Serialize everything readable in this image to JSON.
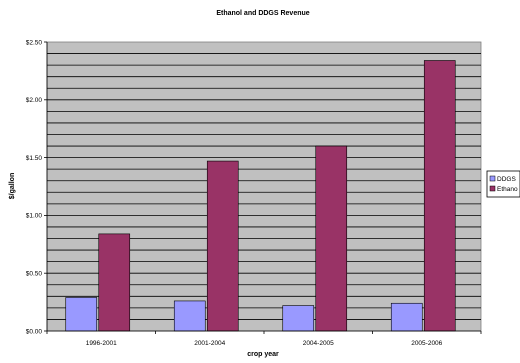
{
  "chart_data": {
    "type": "bar",
    "title": "Ethanol and DDGS Revenue",
    "xlabel": "crop year",
    "ylabel": "$/gallon",
    "categories": [
      "1996-2001",
      "2001-2004",
      "2004-2005",
      "2005-2006"
    ],
    "series": [
      {
        "name": "DDGS",
        "values": [
          0.29,
          0.26,
          0.22,
          0.24
        ],
        "color": "#9999ff"
      },
      {
        "name": "Ethano",
        "values": [
          0.84,
          1.47,
          1.6,
          2.34
        ],
        "color": "#993366"
      }
    ],
    "ylim": [
      0,
      2.5
    ],
    "y_ticks": [
      "$0.00",
      "$0.50",
      "$1.00",
      "$1.50",
      "$2.00",
      "$2.50"
    ],
    "grid": true,
    "plot_background": "#c0c0c0",
    "legend_position": "right"
  }
}
